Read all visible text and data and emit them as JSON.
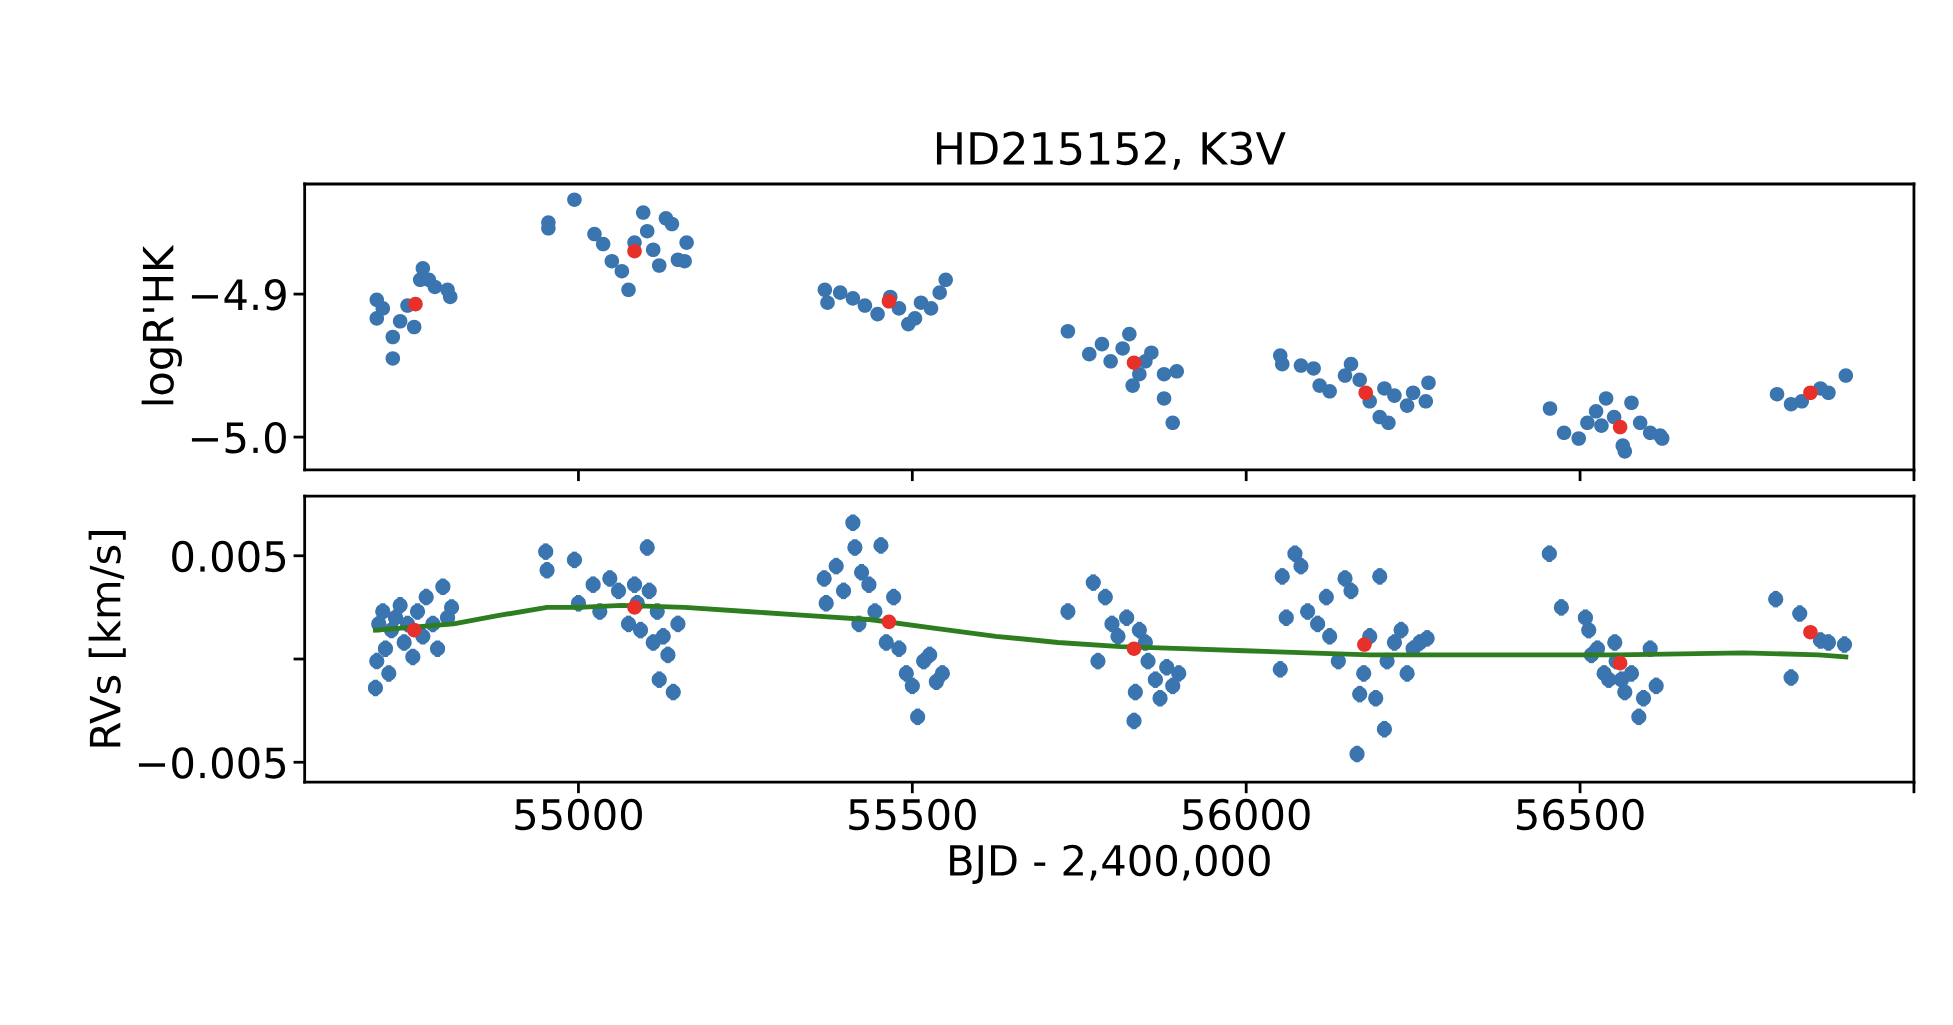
{
  "chart_data": [
    {
      "type": "scatter",
      "title": "HD215152, K3V",
      "ylabel": "logR'HK",
      "xlim": [
        54590,
        57000
      ],
      "xticks": [
        55000,
        55500,
        56000,
        56500,
        {
          "value": 57000,
          "label": null
        }
      ],
      "ylim": [
        -5.023,
        -4.823
      ],
      "yticks": [
        {
          "value": -4.9,
          "label": "−4.9"
        },
        {
          "value": -5.0,
          "label": "−5.0"
        }
      ],
      "tick_labels": "y",
      "grid": false,
      "legend": false,
      "series": [
        {
          "color": "#3b75af",
          "marker": "circle",
          "x": [
            54698,
            54698,
            54707,
            54722,
            54722,
            54733,
            54744,
            54754,
            54763,
            54767,
            54776,
            54785,
            54804,
            54808,
            54955,
            54955,
            54994,
            55024,
            55037,
            55050,
            55065,
            55075,
            55084,
            55097,
            55103,
            55112,
            55121,
            55131,
            55140,
            55149,
            55159,
            55162,
            55369,
            55373,
            55392,
            55411,
            55429,
            55448,
            55467,
            55480,
            55494,
            55513,
            55528,
            55541,
            55550,
            55504,
            55733,
            55765,
            55784,
            55797,
            55815,
            55825,
            55840,
            55858,
            55877,
            55877,
            55896,
            55890,
            55830,
            55849,
            56051,
            56054,
            56082,
            56101,
            56110,
            56125,
            56148,
            56157,
            56170,
            56185,
            56200,
            56213,
            56222,
            56241,
            56250,
            56269,
            56273,
            56207,
            56455,
            56476,
            56498,
            56511,
            56524,
            56532,
            56539,
            56551,
            56564,
            56567,
            56577,
            56590,
            56605,
            56620,
            56623,
            56795,
            56816,
            56832,
            56860,
            56872,
            56898
          ],
          "values": [
            -4.904,
            -4.917,
            -4.91,
            -4.945,
            -4.93,
            -4.919,
            -4.908,
            -4.923,
            -4.89,
            -4.882,
            -4.89,
            -4.895,
            -4.897,
            -4.902,
            -4.85,
            -4.854,
            -4.834,
            -4.858,
            -4.865,
            -4.877,
            -4.884,
            -4.897,
            -4.864,
            -4.843,
            -4.856,
            -4.869,
            -4.88,
            -4.847,
            -4.851,
            -4.876,
            -4.877,
            -4.864,
            -4.897,
            -4.906,
            -4.899,
            -4.903,
            -4.908,
            -4.914,
            -4.902,
            -4.91,
            -4.921,
            -4.906,
            -4.91,
            -4.899,
            -4.89,
            -4.917,
            -4.926,
            -4.942,
            -4.935,
            -4.947,
            -4.938,
            -4.928,
            -4.956,
            -4.941,
            -4.956,
            -4.973,
            -4.954,
            -4.99,
            -4.964,
            -4.947,
            -4.943,
            -4.949,
            -4.95,
            -4.952,
            -4.964,
            -4.968,
            -4.957,
            -4.949,
            -4.96,
            -4.975,
            -4.986,
            -4.99,
            -4.971,
            -4.978,
            -4.969,
            -4.975,
            -4.962,
            -4.966,
            -4.98,
            -4.997,
            -5.001,
            -4.99,
            -4.982,
            -4.992,
            -4.973,
            -4.986,
            -5.006,
            -5.01,
            -4.976,
            -4.99,
            -4.997,
            -4.999,
            -5.001,
            -4.97,
            -4.977,
            -4.975,
            -4.966,
            -4.969,
            -4.957
          ]
        },
        {
          "color": "#e8302a",
          "marker": "circle",
          "x": [
            54756,
            55084,
            55465,
            55832,
            56179,
            56560,
            56845
          ],
          "values": [
            -4.907,
            -4.87,
            -4.905,
            -4.948,
            -4.969,
            -4.993,
            -4.969
          ]
        }
      ]
    },
    {
      "type": "scatter",
      "xlabel": "BJD - 2,400,000",
      "ylabel": "RVs [km/s]",
      "xlim": [
        54590,
        57000
      ],
      "xticks": [
        55000,
        55500,
        56000,
        56500,
        {
          "value": 57000,
          "label": null
        }
      ],
      "ylim": [
        -0.00596,
        0.00789
      ],
      "yticks": [
        {
          "value": -0.005,
          "label": "−0.005"
        },
        {
          "value": 0,
          "label": null
        },
        0.005
      ],
      "grid": false,
      "legend": false,
      "series": [
        {
          "color": "#3b75af",
          "marker": "circle",
          "x": [
            54696,
            54698,
            54701,
            54707,
            54711,
            54716,
            54720,
            54726,
            54733,
            54739,
            54744,
            54752,
            54759,
            54767,
            54772,
            54782,
            54789,
            54797,
            54804,
            54810,
            54951,
            54953,
            54994,
            55000,
            55022,
            55032,
            55047,
            55060,
            55075,
            55084,
            55093,
            55103,
            55106,
            55112,
            55118,
            55121,
            55127,
            55134,
            55142,
            55149,
            55088,
            55368,
            55371,
            55386,
            55397,
            55411,
            55414,
            55424,
            55435,
            55444,
            55453,
            55461,
            55472,
            55480,
            55491,
            55500,
            55508,
            55517,
            55526,
            55536,
            55545,
            55420,
            55733,
            55771,
            55778,
            55789,
            55799,
            55808,
            55821,
            55834,
            55832,
            55840,
            55849,
            55864,
            55871,
            55881,
            55890,
            55899,
            55853,
            56051,
            56054,
            56060,
            56073,
            56082,
            56092,
            56107,
            56120,
            56125,
            56148,
            56157,
            56170,
            56176,
            56185,
            56194,
            56200,
            56207,
            56211,
            56222,
            56232,
            56241,
            56250,
            56260,
            56271,
            56166,
            56138,
            56454,
            56472,
            56508,
            56513,
            56517,
            56526,
            56536,
            56543,
            56552,
            56562,
            56567,
            56577,
            56588,
            56595,
            56605,
            56614,
            56554,
            56793,
            56816,
            56829,
            56860,
            56872,
            56896
          ],
          "values": [
            -0.0014,
            -0.0001,
            0.0017,
            0.0023,
            0.0005,
            -0.0007,
            0.0014,
            0.002,
            0.0026,
            0.0008,
            0.0017,
            0.0001,
            0.0023,
            0.0011,
            0.003,
            0.0017,
            0.0005,
            0.0035,
            0.002,
            0.0025,
            0.0052,
            0.0043,
            0.0048,
            0.0027,
            0.0036,
            0.0023,
            0.0039,
            0.0033,
            0.0017,
            0.0036,
            0.0014,
            0.0054,
            0.0033,
            0.0008,
            0.0023,
            -0.001,
            0.0011,
            0.0002,
            -0.0016,
            0.0017,
            0.0027,
            0.0039,
            0.0027,
            0.0045,
            0.0033,
            0.0066,
            0.0054,
            0.0042,
            0.0036,
            0.0023,
            0.0055,
            0.0008,
            0.003,
            0.0005,
            -0.0007,
            -0.0013,
            -0.0028,
            -0.0001,
            0.0002,
            -0.0011,
            -0.0007,
            0.0017,
            0.0023,
            0.0037,
            -0.0001,
            0.003,
            0.0017,
            0.0011,
            0.002,
            -0.0016,
            -0.003,
            0.0014,
            0.0008,
            -0.001,
            -0.0019,
            -0.0004,
            -0.0013,
            -0.0007,
            -0.0001,
            -0.0005,
            0.004,
            0.002,
            0.0051,
            0.0045,
            0.0023,
            0.0017,
            0.003,
            0.0011,
            0.0039,
            0.0033,
            -0.0017,
            -0.0007,
            0.0011,
            -0.0019,
            0.004,
            -0.0034,
            -0.0001,
            0.0008,
            0.0014,
            -0.0007,
            0.0005,
            0.0008,
            0.001,
            -0.0046,
            -0.0001,
            0.0051,
            0.0025,
            0.002,
            0.0014,
            0.0002,
            0.0005,
            -0.0007,
            -0.001,
            0.0008,
            -0.001,
            -0.0016,
            -0.0007,
            -0.0028,
            -0.0019,
            0.0005,
            -0.0013,
            -0.0001,
            0.0029,
            -0.0009,
            0.0022,
            0.0009,
            0.0008,
            0.0007
          ],
          "errors": [
            0.0004,
            0.0004,
            0.0004,
            0.0004,
            0.0004,
            0.0004,
            0.0004,
            0.0004,
            0.0004,
            0.0004,
            0.0004,
            0.0004,
            0.0004,
            0.0004,
            0.0004,
            0.0004,
            0.0004,
            0.0004,
            0.0004,
            0.0004,
            0.0004,
            0.0004,
            0.0004,
            0.0004,
            0.0004,
            0.0004,
            0.0004,
            0.0004,
            0.0004,
            0.0004,
            0.0004,
            0.0004,
            0.0004,
            0.0004,
            0.0004,
            0.0004,
            0.0004,
            0.0004,
            0.0004,
            0.0004,
            0.0004,
            0.0004,
            0.0004,
            0.0004,
            0.0004,
            0.0004,
            0.0004,
            0.0004,
            0.0004,
            0.0004,
            0.0004,
            0.0004,
            0.0004,
            0.0004,
            0.0004,
            0.0004,
            0.0004,
            0.0004,
            0.0004,
            0.0004,
            0.0004,
            0.0004,
            0.0004,
            0.0004,
            0.0004,
            0.0004,
            0.0004,
            0.0004,
            0.0004,
            0.0004,
            0.0004,
            0.0004,
            0.0004,
            0.0004,
            0.0004,
            0.0004,
            0.0004,
            0.0004,
            0.0004,
            0.0004,
            0.0004,
            0.0004,
            0.0004,
            0.0004,
            0.0004,
            0.0004,
            0.0004,
            0.0004,
            0.0004,
            0.0004,
            0.0004,
            0.0004,
            0.0004,
            0.0004,
            0.0004,
            0.0004,
            0.0004,
            0.0004,
            0.0004,
            0.0004,
            0.0004,
            0.0004,
            0.0004,
            0.0004,
            0.0004,
            0.0004,
            0.0004,
            0.0004,
            0.0004,
            0.0004,
            0.0004,
            0.0004,
            0.0004,
            0.0004,
            0.0004,
            0.0004,
            0.0004,
            0.0004,
            0.0004,
            0.0004,
            0.0004,
            0.0004,
            0.0004,
            0.0004,
            0.0004,
            0.0004,
            0.0004,
            0.0004
          ]
        },
        {
          "type": "line",
          "color": "#2e7d1f",
          "marker": "none",
          "line_style": "solid",
          "x": [
            54696,
            54813,
            54879,
            54953,
            55000,
            55065,
            55159,
            55252,
            55345,
            55439,
            55532,
            55625,
            55718,
            55812,
            55905,
            55998,
            56092,
            56185,
            56371,
            56558,
            56745,
            56857,
            56898
          ],
          "values": [
            0.0014,
            0.0017,
            0.0021,
            0.0025,
            0.0025,
            0.0026,
            0.0025,
            0.0023,
            0.0021,
            0.0019,
            0.0015,
            0.0011,
            0.0008,
            0.0006,
            0.0005,
            0.0004,
            0.0003,
            0.0002,
            0.0002,
            0.0002,
            0.0003,
            0.0002,
            0.0001
          ]
        },
        {
          "color": "#e8302a",
          "marker": "circle",
          "x": [
            54754,
            55084,
            55465,
            55832,
            56177,
            56560,
            56845
          ],
          "values": [
            0.0014,
            0.0025,
            0.0018,
            0.0005,
            0.0007,
            -0.0002,
            0.0013
          ]
        }
      ]
    }
  ]
}
